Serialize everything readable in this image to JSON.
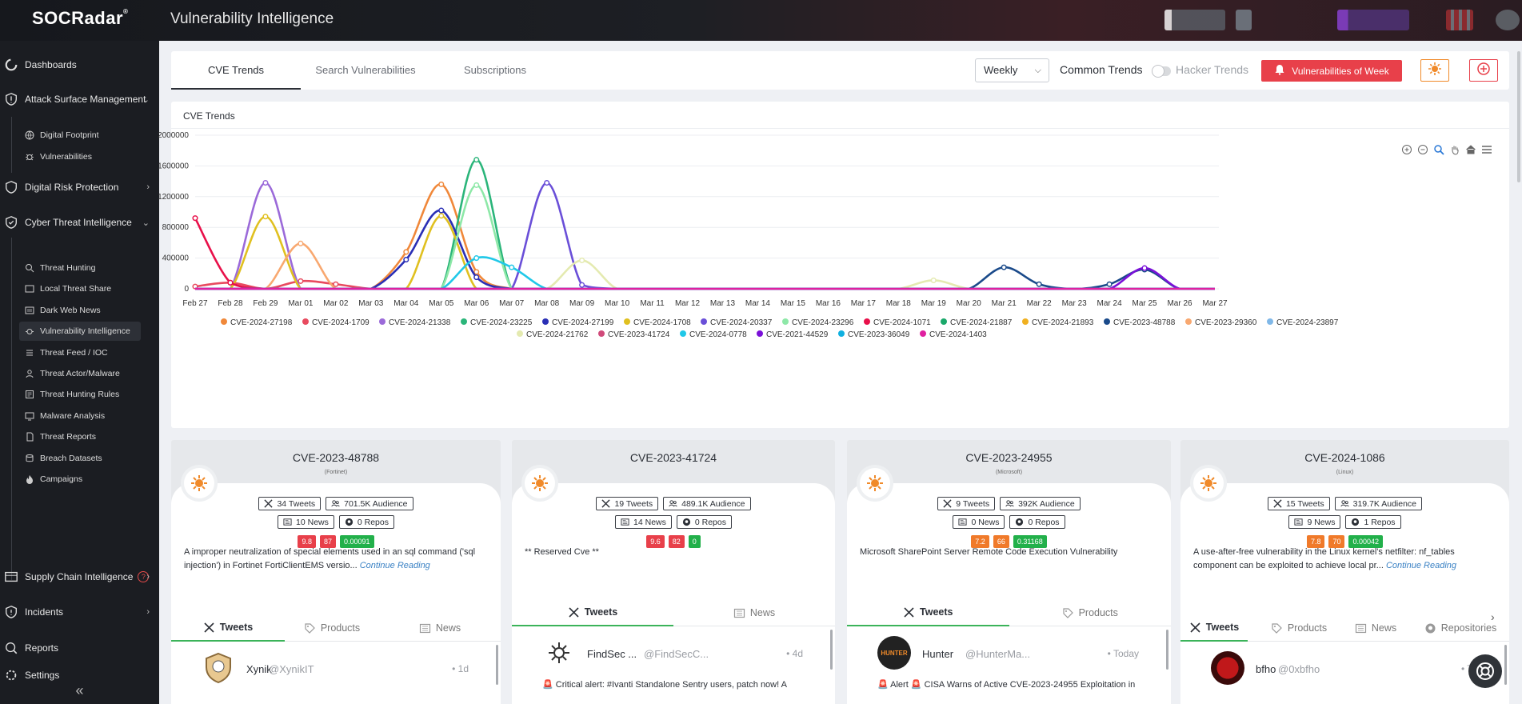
{
  "app": {
    "logo": "SOCRadar",
    "logo_mark": "®",
    "title": "Vulnerability Intelligence"
  },
  "sidebar": {
    "dashboards": "Dashboards",
    "asm": "Attack Surface Management",
    "asm_items": [
      "Digital Footprint",
      "Vulnerabilities"
    ],
    "drp": "Digital Risk Protection",
    "cti": "Cyber Threat Intelligence",
    "cti_items": [
      "Threat Hunting",
      "Local Threat Share",
      "Dark Web News",
      "Vulnerability Intelligence",
      "Threat Feed / IOC",
      "Threat Actor/Malware",
      "Threat Hunting Rules",
      "Malware Analysis",
      "Threat Reports",
      "Breach Datasets",
      "Campaigns"
    ],
    "sci": "Supply Chain Intelligence",
    "sci_help": "?",
    "incidents": "Incidents",
    "reports": "Reports",
    "settings": "Settings",
    "collapse": "«"
  },
  "tabs": [
    "CVE Trends",
    "Search Vulnerabilities",
    "Subscriptions"
  ],
  "controls": {
    "period": "Weekly",
    "common_trends": "Common Trends",
    "hacker_trends": "Hacker Trends",
    "vuln_of_week": "Vulnerabilities of Week",
    "accent": "#e8404a"
  },
  "chart_card": {
    "title": "CVE Trends"
  },
  "chart_data": {
    "type": "line",
    "x": [
      "Feb 27",
      "Feb 28",
      "Feb 29",
      "Mar 01",
      "Mar 02",
      "Mar 03",
      "Mar 04",
      "Mar 05",
      "Mar 06",
      "Mar 07",
      "Mar 08",
      "Mar 09",
      "Mar 10",
      "Mar 11",
      "Mar 12",
      "Mar 13",
      "Mar 14",
      "Mar 15",
      "Mar 16",
      "Mar 17",
      "Mar 18",
      "Mar 19",
      "Mar 20",
      "Mar 21",
      "Mar 22",
      "Mar 23",
      "Mar 24",
      "Mar 25",
      "Mar 26",
      "Mar 27"
    ],
    "ylim": [
      0,
      2000000
    ],
    "yticks": [
      "0",
      "400000",
      "800000",
      "1200000",
      "1600000",
      "2000000"
    ],
    "series": [
      {
        "name": "CVE-2024-27198",
        "color": "#f0883a",
        "values": [
          0,
          0,
          0,
          0,
          0,
          0,
          480000,
          1360000,
          220000,
          0,
          0,
          0,
          0,
          0,
          0,
          0,
          0,
          0,
          0,
          0,
          0,
          0,
          0,
          0,
          0,
          0,
          0,
          0,
          0,
          0
        ]
      },
      {
        "name": "CVE-2024-1709",
        "color": "#e84a5f",
        "values": [
          30000,
          80000,
          0,
          100000,
          60000,
          0,
          0,
          0,
          0,
          0,
          0,
          0,
          0,
          0,
          0,
          0,
          0,
          0,
          0,
          0,
          0,
          0,
          0,
          0,
          0,
          0,
          0,
          0,
          0,
          0
        ]
      },
      {
        "name": "CVE-2024-21338",
        "color": "#9b6ad9",
        "values": [
          0,
          0,
          1380000,
          0,
          0,
          0,
          0,
          0,
          0,
          0,
          0,
          0,
          0,
          0,
          0,
          0,
          0,
          0,
          0,
          0,
          0,
          0,
          0,
          0,
          0,
          0,
          0,
          0,
          0,
          0
        ]
      },
      {
        "name": "CVE-2024-23225",
        "color": "#2bb57a",
        "values": [
          0,
          0,
          0,
          0,
          0,
          0,
          0,
          0,
          1680000,
          0,
          0,
          0,
          0,
          0,
          0,
          0,
          0,
          0,
          0,
          0,
          0,
          0,
          0,
          0,
          0,
          0,
          0,
          0,
          0,
          0
        ]
      },
      {
        "name": "CVE-2024-27199",
        "color": "#2a2fb5",
        "values": [
          0,
          0,
          0,
          0,
          0,
          0,
          380000,
          1020000,
          150000,
          0,
          0,
          0,
          0,
          0,
          0,
          0,
          0,
          0,
          0,
          0,
          0,
          0,
          0,
          0,
          0,
          0,
          0,
          0,
          0,
          0
        ]
      },
      {
        "name": "CVE-2024-1708",
        "color": "#e0c020",
        "values": [
          0,
          0,
          940000,
          0,
          0,
          0,
          0,
          950000,
          0,
          0,
          0,
          0,
          0,
          0,
          0,
          0,
          0,
          0,
          0,
          0,
          0,
          0,
          0,
          0,
          0,
          0,
          0,
          0,
          0,
          0
        ]
      },
      {
        "name": "CVE-2024-20337",
        "color": "#6a4fd8",
        "values": [
          0,
          0,
          0,
          0,
          0,
          0,
          0,
          0,
          0,
          0,
          1380000,
          50000,
          0,
          0,
          0,
          0,
          0,
          0,
          0,
          0,
          0,
          0,
          0,
          0,
          0,
          0,
          0,
          0,
          0,
          0
        ]
      },
      {
        "name": "CVE-2024-23296",
        "color": "#8ee8a8",
        "values": [
          0,
          0,
          0,
          0,
          0,
          0,
          0,
          0,
          1350000,
          0,
          0,
          0,
          0,
          0,
          0,
          0,
          0,
          0,
          0,
          0,
          0,
          0,
          0,
          0,
          0,
          0,
          0,
          0,
          0,
          0
        ]
      },
      {
        "name": "CVE-2024-1071",
        "color": "#e8104a",
        "values": [
          920000,
          80000,
          0,
          0,
          0,
          0,
          0,
          0,
          0,
          0,
          0,
          0,
          0,
          0,
          0,
          0,
          0,
          0,
          0,
          0,
          0,
          0,
          0,
          0,
          0,
          0,
          0,
          0,
          0,
          0
        ]
      },
      {
        "name": "CVE-2024-21887",
        "color": "#1aa86a",
        "values": [
          0,
          0,
          0,
          0,
          0,
          0,
          0,
          0,
          0,
          0,
          0,
          0,
          0,
          0,
          0,
          0,
          0,
          0,
          0,
          0,
          0,
          0,
          0,
          0,
          0,
          0,
          0,
          0,
          0,
          0
        ]
      },
      {
        "name": "CVE-2024-21893",
        "color": "#f0b020",
        "values": [
          0,
          0,
          0,
          0,
          0,
          0,
          0,
          0,
          0,
          0,
          0,
          0,
          0,
          0,
          0,
          0,
          0,
          0,
          0,
          0,
          0,
          0,
          0,
          0,
          0,
          0,
          0,
          0,
          0,
          0
        ]
      },
      {
        "name": "CVE-2023-48788",
        "color": "#1a4a8a",
        "values": [
          0,
          0,
          0,
          0,
          0,
          0,
          0,
          0,
          0,
          0,
          0,
          0,
          0,
          0,
          0,
          0,
          0,
          0,
          0,
          0,
          0,
          0,
          0,
          280000,
          60000,
          0,
          60000,
          250000,
          0,
          0
        ]
      },
      {
        "name": "CVE-2023-29360",
        "color": "#f8a870",
        "values": [
          0,
          0,
          0,
          590000,
          0,
          0,
          0,
          0,
          0,
          0,
          0,
          0,
          0,
          0,
          0,
          0,
          0,
          0,
          0,
          0,
          0,
          0,
          0,
          0,
          0,
          0,
          0,
          0,
          0,
          0
        ]
      },
      {
        "name": "CVE-2024-23897",
        "color": "#80b8e8",
        "values": [
          0,
          0,
          0,
          0,
          0,
          0,
          0,
          0,
          0,
          0,
          0,
          0,
          0,
          0,
          0,
          0,
          0,
          0,
          0,
          0,
          0,
          0,
          0,
          0,
          0,
          0,
          0,
          0,
          0,
          0
        ]
      },
      {
        "name": "CVE-2024-21762",
        "color": "#e4eab0",
        "values": [
          0,
          0,
          0,
          0,
          0,
          0,
          0,
          0,
          0,
          0,
          0,
          370000,
          0,
          0,
          0,
          0,
          0,
          0,
          0,
          0,
          0,
          110000,
          0,
          0,
          0,
          0,
          0,
          0,
          0,
          0
        ]
      },
      {
        "name": "CVE-2023-41724",
        "color": "#d04a7a",
        "values": [
          0,
          0,
          0,
          0,
          0,
          0,
          0,
          0,
          0,
          0,
          0,
          0,
          0,
          0,
          0,
          0,
          0,
          0,
          0,
          0,
          0,
          0,
          0,
          0,
          0,
          0,
          0,
          0,
          0,
          0
        ]
      },
      {
        "name": "CVE-2024-0778",
        "color": "#20c8e8",
        "values": [
          0,
          0,
          0,
          0,
          0,
          0,
          0,
          0,
          400000,
          280000,
          0,
          0,
          0,
          0,
          0,
          0,
          0,
          0,
          0,
          0,
          0,
          0,
          0,
          0,
          0,
          0,
          0,
          0,
          0,
          0
        ]
      },
      {
        "name": "CVE-2021-44529",
        "color": "#7a10d8",
        "values": [
          0,
          0,
          0,
          0,
          0,
          0,
          0,
          0,
          0,
          0,
          0,
          0,
          0,
          0,
          0,
          0,
          0,
          0,
          0,
          0,
          0,
          0,
          0,
          0,
          0,
          0,
          0,
          270000,
          0,
          0
        ]
      },
      {
        "name": "CVE-2023-36049",
        "color": "#10b0e0",
        "values": [
          0,
          0,
          0,
          0,
          0,
          0,
          0,
          0,
          0,
          0,
          0,
          0,
          0,
          0,
          0,
          0,
          0,
          0,
          0,
          0,
          0,
          0,
          0,
          0,
          0,
          0,
          0,
          0,
          0,
          0
        ]
      },
      {
        "name": "CVE-2024-1403",
        "color": "#e020a0",
        "values": [
          0,
          0,
          0,
          0,
          0,
          0,
          0,
          0,
          0,
          0,
          0,
          0,
          0,
          0,
          0,
          0,
          0,
          0,
          0,
          0,
          0,
          0,
          0,
          0,
          0,
          0,
          0,
          0,
          0,
          0
        ]
      }
    ]
  },
  "cards": [
    {
      "id": "CVE-2023-48788",
      "vendor": "(Fortinet)",
      "tweets": "34 Tweets",
      "audience": "701.5K Audience",
      "news": "10 News",
      "repos": "0 Repos",
      "scores": [
        "9.8",
        "87",
        "0.00091"
      ],
      "desc": "A improper neutralization of special elements used in an sql command ('sql injection') in Fortinet FortiClientEMS versio...",
      "more": "Continue Reading",
      "tabs": [
        "Tweets",
        "Products",
        "News"
      ],
      "tweet": {
        "name": "Xynik",
        "handle": "@XynikIT",
        "time": "• 1d",
        "text": ""
      }
    },
    {
      "id": "CVE-2023-41724",
      "vendor": "",
      "tweets": "19 Tweets",
      "audience": "489.1K Audience",
      "news": "14 News",
      "repos": "0 Repos",
      "scores": [
        "9.6",
        "82",
        "0"
      ],
      "desc": "** Reserved Cve **",
      "more": "",
      "tabs": [
        "Tweets",
        "News"
      ],
      "tweet": {
        "name": "FindSec ...",
        "handle": "@FindSecC...",
        "time": "• 4d",
        "text": "🚨 Critical alert: #Ivanti Standalone Sentry users, patch now! A"
      }
    },
    {
      "id": "CVE-2023-24955",
      "vendor": "(Microsoft)",
      "tweets": "9 Tweets",
      "audience": "392K Audience",
      "news": "0 News",
      "repos": "0 Repos",
      "scores": [
        "7.2",
        "66",
        "0.31168"
      ],
      "desc": "Microsoft SharePoint Server Remote Code Execution Vulnerability",
      "more": "",
      "tabs": [
        "Tweets",
        "Products"
      ],
      "tweet": {
        "name": "Hunter",
        "handle": "@HunterMa...",
        "time": "• Today",
        "text": "🚨 Alert 🚨 CISA Warns of Active CVE-2023-24955 Exploitation in"
      }
    },
    {
      "id": "CVE-2024-1086",
      "vendor": "(Linux)",
      "tweets": "15 Tweets",
      "audience": "319.7K Audience",
      "news": "9 News",
      "repos": "1 Repos",
      "scores": [
        "7.8",
        "70",
        "0.00042"
      ],
      "desc": "A use-after-free vulnerability in the Linux kernel's netfilter: nf_tables component can be exploited to achieve local pr...",
      "more": "Continue Reading",
      "tabs": [
        "Tweets",
        "Products",
        "News",
        "Repositories"
      ],
      "tweet": {
        "name": "bfho",
        "handle": "@0xbfho",
        "time": "• To",
        "text": ""
      }
    }
  ],
  "avatars": {
    "card2": "HUNTER"
  },
  "colors": {
    "score_red": "#e8404a",
    "score_orange": "#f07a2a",
    "score_green": "#22b04a"
  }
}
